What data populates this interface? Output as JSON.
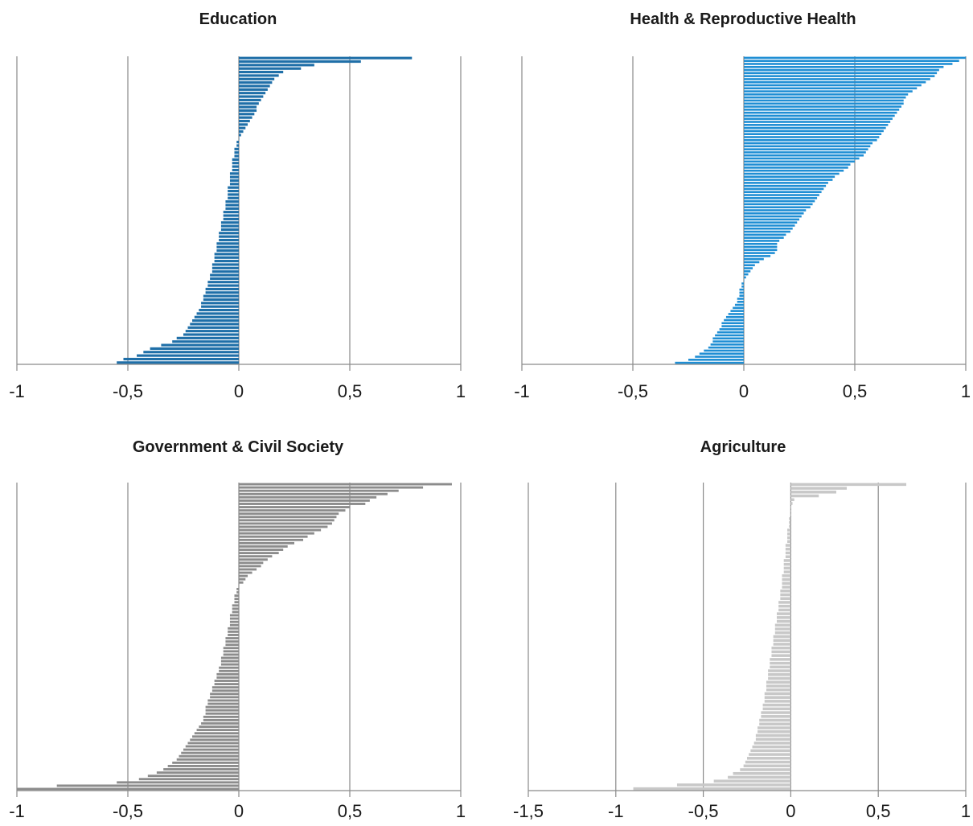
{
  "chart_data": [
    {
      "type": "bar",
      "orientation": "horizontal",
      "title": "Education",
      "xlim": [
        -1,
        1
      ],
      "xticks": [
        "-1",
        "-0,5",
        "0",
        "0,5",
        "1"
      ],
      "grid": true,
      "color": "#1f6fa8",
      "values": [
        0.78,
        0.55,
        0.34,
        0.28,
        0.2,
        0.18,
        0.16,
        0.15,
        0.14,
        0.13,
        0.12,
        0.11,
        0.1,
        0.09,
        0.08,
        0.08,
        0.07,
        0.06,
        0.05,
        0.04,
        0.03,
        0.02,
        0.01,
        0.0,
        -0.01,
        -0.01,
        -0.02,
        -0.02,
        -0.02,
        -0.03,
        -0.03,
        -0.03,
        -0.03,
        -0.04,
        -0.04,
        -0.04,
        -0.04,
        -0.05,
        -0.05,
        -0.05,
        -0.05,
        -0.06,
        -0.06,
        -0.06,
        -0.07,
        -0.07,
        -0.07,
        -0.08,
        -0.08,
        -0.08,
        -0.09,
        -0.09,
        -0.09,
        -0.1,
        -0.1,
        -0.1,
        -0.11,
        -0.11,
        -0.11,
        -0.12,
        -0.12,
        -0.12,
        -0.13,
        -0.13,
        -0.14,
        -0.14,
        -0.15,
        -0.15,
        -0.16,
        -0.16,
        -0.17,
        -0.17,
        -0.18,
        -0.19,
        -0.2,
        -0.21,
        -0.22,
        -0.23,
        -0.24,
        -0.25,
        -0.28,
        -0.3,
        -0.35,
        -0.4,
        -0.43,
        -0.46,
        -0.52,
        -0.55
      ]
    },
    {
      "type": "bar",
      "orientation": "horizontal",
      "title": "Health & Reproductive Health",
      "xlim": [
        -1,
        1
      ],
      "xticks": [
        "-1",
        "-0,5",
        "0",
        "0,5",
        "1"
      ],
      "grid": true,
      "color": "#1f8ed4",
      "values": [
        1.0,
        0.97,
        0.94,
        0.9,
        0.88,
        0.87,
        0.86,
        0.84,
        0.82,
        0.8,
        0.78,
        0.76,
        0.74,
        0.73,
        0.72,
        0.72,
        0.71,
        0.7,
        0.69,
        0.68,
        0.67,
        0.66,
        0.65,
        0.64,
        0.63,
        0.62,
        0.61,
        0.6,
        0.58,
        0.57,
        0.56,
        0.55,
        0.54,
        0.52,
        0.5,
        0.48,
        0.47,
        0.45,
        0.43,
        0.41,
        0.4,
        0.38,
        0.37,
        0.36,
        0.35,
        0.34,
        0.33,
        0.32,
        0.31,
        0.3,
        0.28,
        0.27,
        0.26,
        0.25,
        0.24,
        0.23,
        0.22,
        0.21,
        0.19,
        0.18,
        0.16,
        0.15,
        0.15,
        0.15,
        0.14,
        0.12,
        0.09,
        0.07,
        0.05,
        0.04,
        0.03,
        0.02,
        0.01,
        0.0,
        -0.01,
        -0.01,
        -0.02,
        -0.02,
        -0.02,
        -0.03,
        -0.03,
        -0.04,
        -0.05,
        -0.06,
        -0.07,
        -0.08,
        -0.09,
        -0.1,
        -0.1,
        -0.11,
        -0.12,
        -0.13,
        -0.14,
        -0.14,
        -0.15,
        -0.16,
        -0.18,
        -0.2,
        -0.22,
        -0.25,
        -0.31
      ]
    },
    {
      "type": "bar",
      "orientation": "horizontal",
      "title": "Government & Civil Society",
      "xlim": [
        -1,
        1
      ],
      "xticks": [
        "-1",
        "-0,5",
        "0",
        "0,5",
        "1"
      ],
      "grid": true,
      "color": "#8c8c8c",
      "values": [
        0.96,
        0.83,
        0.72,
        0.67,
        0.62,
        0.59,
        0.57,
        0.5,
        0.48,
        0.45,
        0.44,
        0.43,
        0.42,
        0.4,
        0.37,
        0.34,
        0.31,
        0.29,
        0.25,
        0.22,
        0.2,
        0.18,
        0.15,
        0.13,
        0.11,
        0.1,
        0.08,
        0.06,
        0.04,
        0.03,
        0.02,
        0.0,
        -0.01,
        -0.01,
        -0.02,
        -0.02,
        -0.02,
        -0.03,
        -0.03,
        -0.03,
        -0.04,
        -0.04,
        -0.04,
        -0.04,
        -0.05,
        -0.05,
        -0.05,
        -0.06,
        -0.06,
        -0.06,
        -0.07,
        -0.07,
        -0.07,
        -0.08,
        -0.08,
        -0.08,
        -0.09,
        -0.09,
        -0.1,
        -0.1,
        -0.11,
        -0.11,
        -0.12,
        -0.12,
        -0.13,
        -0.13,
        -0.14,
        -0.14,
        -0.15,
        -0.15,
        -0.15,
        -0.16,
        -0.16,
        -0.17,
        -0.18,
        -0.19,
        -0.2,
        -0.21,
        -0.22,
        -0.23,
        -0.24,
        -0.25,
        -0.26,
        -0.27,
        -0.28,
        -0.3,
        -0.32,
        -0.34,
        -0.37,
        -0.41,
        -0.45,
        -0.55,
        -0.82,
        -1.0
      ]
    },
    {
      "type": "bar",
      "orientation": "horizontal",
      "title": "Agriculture",
      "xlim": [
        -1.5,
        1
      ],
      "xticks": [
        "-1,5",
        "-1",
        "-0,5",
        "0",
        "0,5",
        "1"
      ],
      "grid": true,
      "color": "#c8c8c8",
      "values": [
        0.66,
        0.32,
        0.26,
        0.16,
        0.02,
        0.01,
        0.0,
        0.0,
        0.0,
        -0.01,
        -0.01,
        -0.01,
        -0.02,
        -0.02,
        -0.02,
        -0.02,
        -0.03,
        -0.03,
        -0.03,
        -0.03,
        -0.04,
        -0.04,
        -0.04,
        -0.04,
        -0.05,
        -0.05,
        -0.05,
        -0.05,
        -0.06,
        -0.06,
        -0.06,
        -0.07,
        -0.07,
        -0.07,
        -0.08,
        -0.08,
        -0.08,
        -0.09,
        -0.09,
        -0.09,
        -0.1,
        -0.1,
        -0.1,
        -0.11,
        -0.11,
        -0.11,
        -0.12,
        -0.12,
        -0.12,
        -0.13,
        -0.13,
        -0.13,
        -0.14,
        -0.14,
        -0.14,
        -0.15,
        -0.15,
        -0.15,
        -0.16,
        -0.16,
        -0.17,
        -0.17,
        -0.18,
        -0.18,
        -0.19,
        -0.19,
        -0.2,
        -0.2,
        -0.21,
        -0.22,
        -0.23,
        -0.24,
        -0.25,
        -0.26,
        -0.27,
        -0.29,
        -0.33,
        -0.36,
        -0.44,
        -0.65,
        -0.9
      ]
    }
  ]
}
